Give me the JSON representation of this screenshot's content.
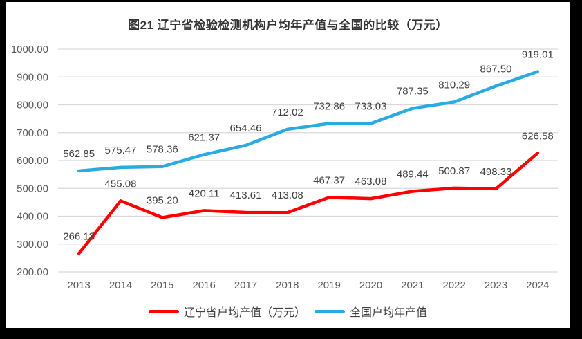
{
  "chart_data": {
    "type": "line",
    "title": "图21 辽宁省检验检测机构户均年产值与全国的比较（万元）",
    "categories": [
      "2013",
      "2014",
      "2015",
      "2016",
      "2017",
      "2018",
      "2019",
      "2020",
      "2021",
      "2022",
      "2023",
      "2024"
    ],
    "series": [
      {
        "name": "辽宁省户均产值（万元）",
        "color": "#FF0000",
        "values": [
          266.13,
          455.08,
          395.2,
          420.11,
          413.61,
          413.08,
          467.37,
          463.08,
          489.44,
          500.87,
          498.33,
          626.58
        ]
      },
      {
        "name": "全国户均年产值",
        "color": "#29ABE2",
        "values": [
          562.85,
          575.47,
          578.36,
          621.37,
          654.46,
          712.02,
          732.86,
          733.03,
          787.35,
          810.29,
          867.5,
          919.01
        ]
      }
    ],
    "xlabel": "",
    "ylabel": "",
    "ylim": [
      200,
      1000
    ],
    "ytick_step": 100,
    "y_tick_labels": [
      "200.00",
      "300.00",
      "400.00",
      "500.00",
      "600.00",
      "700.00",
      "800.00",
      "900.00",
      "1000.00"
    ],
    "grid": true,
    "data_labels": true,
    "decimals": 2,
    "legend_position": "bottom"
  },
  "colors": {
    "series_liaoning": "#FF0000",
    "series_national": "#29ABE2",
    "gridline": "#D9D9D9",
    "axis_label": "#595959",
    "data_label": "#404040",
    "title_text": "#333333",
    "frame_border": "#000000",
    "background": "#FFFFFF"
  }
}
